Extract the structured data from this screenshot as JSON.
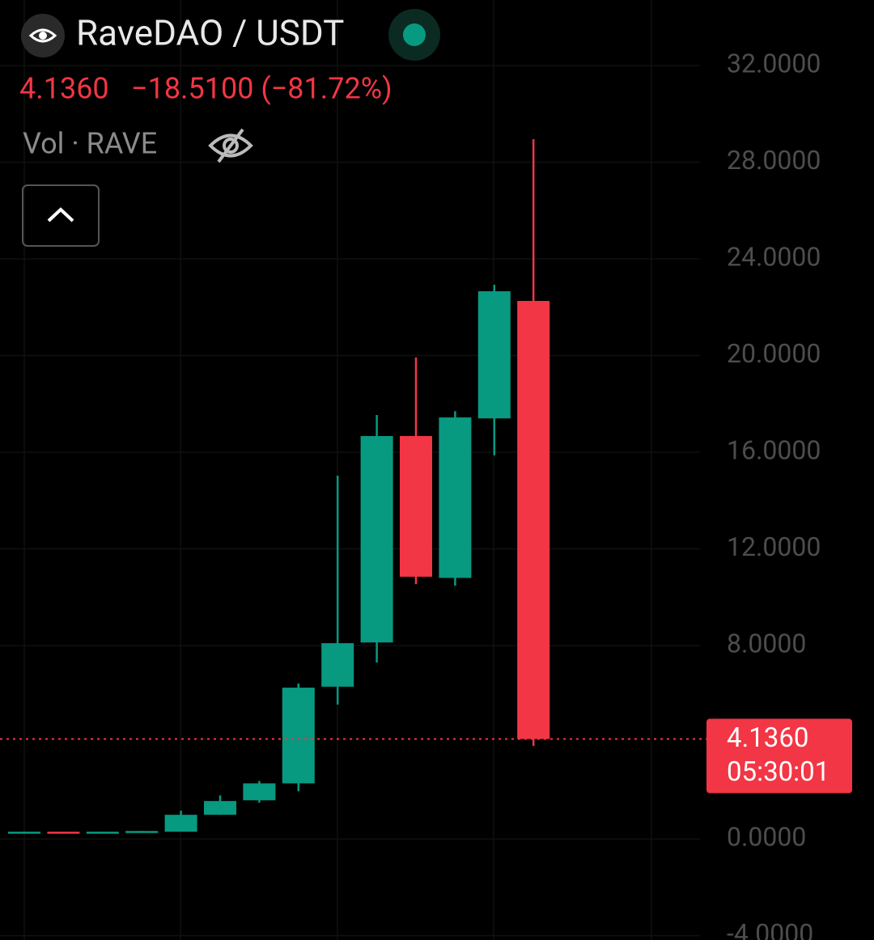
{
  "chart_data": {
    "type": "candlestick",
    "title": "RaveDAO / USDT",
    "price": "4.1360",
    "change": "−18.5100 (−81.72%)",
    "volume_label": "Vol · RAVE",
    "up_color": "#089981",
    "down_color": "#f23645",
    "categories": [
      null,
      null,
      null,
      null,
      null,
      null,
      null,
      null,
      null,
      null,
      null,
      null,
      null,
      null
    ],
    "open": [
      0.28,
      0.3,
      0.28,
      0.3,
      0.3,
      1.0,
      1.6,
      2.3,
      6.3,
      8.13,
      16.67,
      10.8,
      17.4,
      22.26
    ],
    "high": [
      0.3,
      0.3,
      0.3,
      0.33,
      1.17,
      1.8,
      2.4,
      6.43,
      15.03,
      17.54,
      19.92,
      17.7,
      22.93,
      28.95
    ],
    "low": [
      0.28,
      0.28,
      0.28,
      0.3,
      0.3,
      1.0,
      1.5,
      1.97,
      5.56,
      7.3,
      10.54,
      10.48,
      15.87,
      3.85
    ],
    "close": [
      0.3,
      0.28,
      0.3,
      0.33,
      1.0,
      1.57,
      2.3,
      6.26,
      8.1,
      16.67,
      10.85,
      17.44,
      22.66,
      4.136
    ],
    "ylim": [
      -4.18,
      34.71
    ],
    "yticks": [
      {
        "value": 32,
        "label": "32.0000"
      },
      {
        "value": 28,
        "label": "28.0000"
      },
      {
        "value": 24,
        "label": "24.0000"
      },
      {
        "value": 20,
        "label": "20.0000"
      },
      {
        "value": 16,
        "label": "16.0000"
      },
      {
        "value": 12,
        "label": "12.0000"
      },
      {
        "value": 8,
        "label": "8.0000"
      },
      {
        "value": 0,
        "label": "0.0000"
      },
      {
        "value": -4,
        "label": "-4.0000"
      }
    ],
    "last_price": {
      "value": 4.136,
      "label": "4.1360"
    },
    "countdown": "05:30:01",
    "grid": true
  }
}
